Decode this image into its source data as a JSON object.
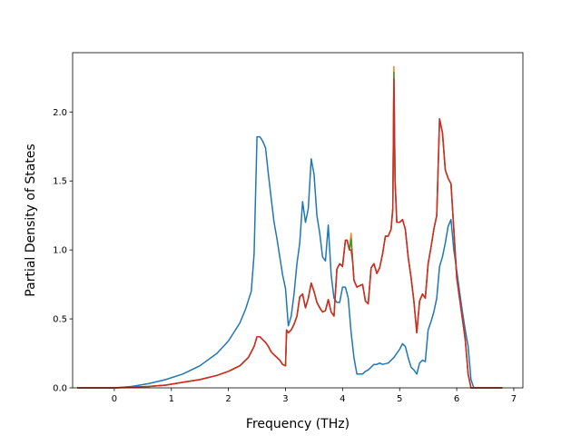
{
  "chart_data": {
    "type": "line",
    "title": "",
    "xlabel": "Frequency (THz)",
    "ylabel": "Partial Density of States",
    "xlim": [
      -0.73,
      7.16
    ],
    "ylim": [
      0.0,
      2.43
    ],
    "xticks": [
      0,
      1,
      2,
      3,
      4,
      5,
      6,
      7
    ],
    "yticks": [
      0.0,
      0.5,
      1.0,
      1.5,
      2.0
    ],
    "ytick_labels": [
      "0.0",
      "0.5",
      "1.0",
      "1.5",
      "2.0"
    ],
    "grid": false,
    "legend": "none",
    "series": [
      {
        "color": "#1f77b4",
        "x": [
          -0.65,
          0.0,
          0.3,
          0.6,
          0.9,
          1.2,
          1.5,
          1.8,
          2.0,
          2.2,
          2.3,
          2.4,
          2.45,
          2.5,
          2.55,
          2.6,
          2.65,
          2.7,
          2.75,
          2.8,
          2.85,
          2.9,
          2.95,
          3.0,
          3.05,
          3.1,
          3.15,
          3.2,
          3.25,
          3.3,
          3.35,
          3.4,
          3.45,
          3.5,
          3.55,
          3.6,
          3.65,
          3.7,
          3.75,
          3.8,
          3.85,
          3.9,
          3.95,
          4.0,
          4.05,
          4.1,
          4.15,
          4.2,
          4.25,
          4.3,
          4.35,
          4.4,
          4.45,
          4.5,
          4.55,
          4.6,
          4.65,
          4.7,
          4.8,
          4.9,
          5.0,
          5.05,
          5.1,
          5.15,
          5.2,
          5.25,
          5.3,
          5.35,
          5.4,
          5.45,
          5.5,
          5.55,
          5.6,
          5.65,
          5.7,
          5.75,
          5.8,
          5.85,
          5.9,
          5.95,
          6.0,
          6.05,
          6.1,
          6.15,
          6.2,
          6.25,
          6.3,
          6.5,
          6.8
        ],
        "y": [
          0.0,
          0.0,
          0.01,
          0.03,
          0.06,
          0.1,
          0.16,
          0.25,
          0.34,
          0.47,
          0.57,
          0.7,
          0.97,
          1.82,
          1.82,
          1.79,
          1.74,
          1.55,
          1.37,
          1.2,
          1.08,
          0.95,
          0.82,
          0.72,
          0.45,
          0.52,
          0.68,
          0.9,
          1.05,
          1.35,
          1.2,
          1.3,
          1.66,
          1.55,
          1.25,
          1.12,
          0.95,
          0.92,
          1.18,
          0.82,
          0.65,
          0.62,
          0.62,
          0.73,
          0.73,
          0.65,
          0.4,
          0.22,
          0.1,
          0.1,
          0.1,
          0.12,
          0.13,
          0.15,
          0.17,
          0.17,
          0.18,
          0.17,
          0.18,
          0.22,
          0.28,
          0.32,
          0.3,
          0.22,
          0.15,
          0.13,
          0.1,
          0.18,
          0.2,
          0.19,
          0.42,
          0.48,
          0.55,
          0.65,
          0.88,
          0.95,
          1.05,
          1.17,
          1.22,
          1.0,
          0.85,
          0.7,
          0.55,
          0.42,
          0.3,
          0.06,
          0.0,
          0.0,
          0.0
        ]
      },
      {
        "color": "#ff7f0e",
        "x": [
          -0.65,
          0.0,
          0.3,
          0.6,
          0.9,
          1.2,
          1.5,
          1.8,
          2.0,
          2.2,
          2.35,
          2.45,
          2.5,
          2.55,
          2.6,
          2.65,
          2.7,
          2.75,
          2.8,
          2.9,
          2.95,
          3.0,
          3.02,
          3.05,
          3.1,
          3.15,
          3.2,
          3.25,
          3.3,
          3.35,
          3.4,
          3.45,
          3.5,
          3.55,
          3.6,
          3.65,
          3.7,
          3.75,
          3.8,
          3.85,
          3.9,
          3.95,
          4.0,
          4.05,
          4.08,
          4.12,
          4.15,
          4.18,
          4.2,
          4.25,
          4.3,
          4.35,
          4.4,
          4.45,
          4.5,
          4.55,
          4.6,
          4.65,
          4.7,
          4.75,
          4.8,
          4.85,
          4.88,
          4.9,
          4.92,
          4.95,
          5.0,
          5.05,
          5.1,
          5.15,
          5.2,
          5.25,
          5.3,
          5.35,
          5.4,
          5.45,
          5.5,
          5.55,
          5.6,
          5.65,
          5.7,
          5.75,
          5.8,
          5.85,
          5.9,
          5.95,
          6.0,
          6.05,
          6.1,
          6.15,
          6.2,
          6.25,
          6.3,
          6.5,
          6.8
        ],
        "y": [
          0.0,
          0.0,
          0.005,
          0.01,
          0.02,
          0.04,
          0.06,
          0.09,
          0.12,
          0.16,
          0.22,
          0.3,
          0.37,
          0.37,
          0.35,
          0.33,
          0.3,
          0.26,
          0.24,
          0.2,
          0.17,
          0.16,
          0.42,
          0.4,
          0.42,
          0.46,
          0.52,
          0.66,
          0.68,
          0.58,
          0.65,
          0.76,
          0.7,
          0.62,
          0.58,
          0.55,
          0.56,
          0.64,
          0.55,
          0.52,
          0.86,
          0.9,
          0.88,
          1.07,
          1.07,
          1.0,
          1.12,
          0.9,
          0.78,
          0.73,
          0.74,
          0.75,
          0.63,
          0.61,
          0.87,
          0.9,
          0.83,
          0.87,
          0.97,
          1.1,
          1.1,
          1.15,
          1.3,
          2.33,
          1.5,
          1.2,
          1.2,
          1.22,
          1.15,
          0.95,
          0.8,
          0.63,
          0.4,
          0.63,
          0.68,
          0.65,
          0.9,
          1.02,
          1.15,
          1.25,
          1.95,
          1.85,
          1.58,
          1.52,
          1.48,
          1.15,
          0.8,
          0.65,
          0.5,
          0.35,
          0.1,
          0.0,
          0.0,
          0.0,
          0.0
        ]
      },
      {
        "color": "#2ca02c",
        "x": [
          -0.65,
          0.0,
          0.3,
          0.6,
          0.9,
          1.2,
          1.5,
          1.8,
          2.0,
          2.2,
          2.35,
          2.45,
          2.5,
          2.55,
          2.6,
          2.65,
          2.7,
          2.75,
          2.8,
          2.9,
          2.95,
          3.0,
          3.02,
          3.05,
          3.1,
          3.15,
          3.2,
          3.25,
          3.3,
          3.35,
          3.4,
          3.45,
          3.5,
          3.55,
          3.6,
          3.65,
          3.7,
          3.75,
          3.8,
          3.85,
          3.9,
          3.95,
          4.0,
          4.05,
          4.08,
          4.12,
          4.15,
          4.18,
          4.2,
          4.25,
          4.3,
          4.35,
          4.4,
          4.45,
          4.5,
          4.55,
          4.6,
          4.65,
          4.7,
          4.75,
          4.8,
          4.85,
          4.88,
          4.9,
          4.92,
          4.95,
          5.0,
          5.05,
          5.1,
          5.15,
          5.2,
          5.25,
          5.3,
          5.35,
          5.4,
          5.45,
          5.5,
          5.55,
          5.6,
          5.65,
          5.7,
          5.75,
          5.8,
          5.85,
          5.9,
          5.95,
          6.0,
          6.05,
          6.1,
          6.15,
          6.2,
          6.25,
          6.3,
          6.5,
          6.8
        ],
        "y": [
          0.0,
          0.0,
          0.005,
          0.01,
          0.02,
          0.04,
          0.06,
          0.09,
          0.12,
          0.16,
          0.22,
          0.3,
          0.37,
          0.37,
          0.35,
          0.33,
          0.3,
          0.26,
          0.24,
          0.2,
          0.17,
          0.16,
          0.42,
          0.4,
          0.42,
          0.46,
          0.52,
          0.66,
          0.68,
          0.58,
          0.65,
          0.76,
          0.7,
          0.62,
          0.58,
          0.55,
          0.56,
          0.64,
          0.55,
          0.52,
          0.86,
          0.9,
          0.88,
          1.07,
          1.07,
          1.0,
          1.08,
          0.9,
          0.78,
          0.73,
          0.74,
          0.75,
          0.63,
          0.61,
          0.87,
          0.9,
          0.83,
          0.87,
          0.97,
          1.1,
          1.1,
          1.15,
          1.3,
          2.29,
          1.5,
          1.2,
          1.2,
          1.22,
          1.15,
          0.95,
          0.8,
          0.63,
          0.4,
          0.63,
          0.68,
          0.65,
          0.9,
          1.02,
          1.15,
          1.25,
          1.95,
          1.85,
          1.58,
          1.52,
          1.48,
          1.15,
          0.8,
          0.65,
          0.5,
          0.35,
          0.1,
          0.0,
          0.0,
          0.0,
          0.0
        ]
      },
      {
        "color": "#d62728",
        "x": [
          -0.65,
          0.0,
          0.3,
          0.6,
          0.9,
          1.2,
          1.5,
          1.8,
          2.0,
          2.2,
          2.35,
          2.45,
          2.5,
          2.55,
          2.6,
          2.65,
          2.7,
          2.75,
          2.8,
          2.9,
          2.95,
          3.0,
          3.02,
          3.05,
          3.1,
          3.15,
          3.2,
          3.25,
          3.3,
          3.35,
          3.4,
          3.45,
          3.5,
          3.55,
          3.6,
          3.65,
          3.7,
          3.75,
          3.8,
          3.85,
          3.9,
          3.95,
          4.0,
          4.05,
          4.08,
          4.12,
          4.15,
          4.18,
          4.2,
          4.25,
          4.3,
          4.35,
          4.4,
          4.45,
          4.5,
          4.55,
          4.6,
          4.65,
          4.7,
          4.75,
          4.8,
          4.85,
          4.88,
          4.9,
          4.92,
          4.95,
          5.0,
          5.05,
          5.1,
          5.15,
          5.2,
          5.25,
          5.3,
          5.35,
          5.4,
          5.45,
          5.5,
          5.55,
          5.6,
          5.65,
          5.7,
          5.75,
          5.8,
          5.85,
          5.9,
          5.95,
          6.0,
          6.05,
          6.1,
          6.15,
          6.2,
          6.25,
          6.3,
          6.5,
          6.8
        ],
        "y": [
          0.0,
          0.0,
          0.005,
          0.01,
          0.02,
          0.04,
          0.06,
          0.09,
          0.12,
          0.16,
          0.22,
          0.3,
          0.37,
          0.37,
          0.35,
          0.33,
          0.3,
          0.26,
          0.24,
          0.2,
          0.17,
          0.16,
          0.42,
          0.4,
          0.42,
          0.46,
          0.52,
          0.66,
          0.68,
          0.58,
          0.65,
          0.76,
          0.7,
          0.62,
          0.58,
          0.55,
          0.56,
          0.64,
          0.55,
          0.52,
          0.86,
          0.9,
          0.88,
          1.07,
          1.07,
          1.0,
          1.0,
          0.9,
          0.78,
          0.73,
          0.74,
          0.75,
          0.63,
          0.61,
          0.87,
          0.9,
          0.83,
          0.87,
          0.97,
          1.1,
          1.1,
          1.15,
          1.3,
          2.24,
          1.5,
          1.2,
          1.2,
          1.22,
          1.15,
          0.95,
          0.8,
          0.63,
          0.4,
          0.63,
          0.68,
          0.65,
          0.9,
          1.02,
          1.15,
          1.25,
          1.95,
          1.85,
          1.58,
          1.52,
          1.48,
          1.15,
          0.8,
          0.65,
          0.5,
          0.35,
          0.1,
          0.0,
          0.0,
          0.0,
          0.0
        ]
      }
    ]
  }
}
